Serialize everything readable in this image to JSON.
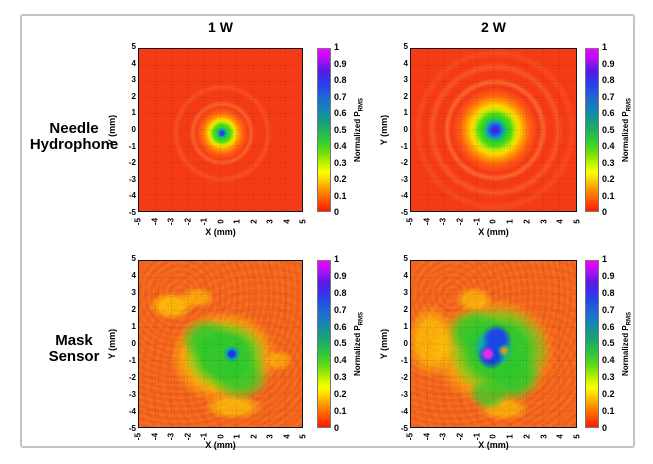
{
  "figure": {
    "columns": [
      {
        "label": "1 W"
      },
      {
        "label": "2 W"
      }
    ],
    "rows": [
      {
        "line1": "Needle",
        "line2": "Hydrophone"
      },
      {
        "line1": "Mask",
        "line2": "Sensor"
      }
    ],
    "axes": {
      "x_label": "X (mm)",
      "y_label": "Y (mm)",
      "x_ticks": [
        "-5",
        "-4",
        "-3",
        "-2",
        "-1",
        "0",
        "1",
        "2",
        "3",
        "4",
        "5"
      ],
      "y_ticks": [
        "5",
        "4",
        "3",
        "2",
        "1",
        "0",
        "-1",
        "-2",
        "-3",
        "-4",
        "-5"
      ]
    },
    "colorbar": {
      "label": "Normalized P",
      "label_sub": "RMS",
      "ticks": [
        "1",
        "0.9",
        "0.8",
        "0.7",
        "0.6",
        "0.5",
        "0.4",
        "0.3",
        "0.2",
        "0.1",
        "0"
      ],
      "colormap_stops": [
        {
          "value": 0,
          "color": "#ff1a00"
        },
        {
          "value": 0.1,
          "color": "#ff9100"
        },
        {
          "value": 0.2,
          "color": "#ffe400"
        },
        {
          "value": 0.3,
          "color": "#b8f000"
        },
        {
          "value": 0.4,
          "color": "#46d714"
        },
        {
          "value": 0.5,
          "color": "#1eb450"
        },
        {
          "value": 0.6,
          "color": "#148c8c"
        },
        {
          "value": 0.7,
          "color": "#1e78c8"
        },
        {
          "value": 0.8,
          "color": "#2846f0"
        },
        {
          "value": 0.9,
          "color": "#7d1ee6"
        },
        {
          "value": 1,
          "color": "#ff00ff"
        }
      ]
    }
  },
  "chart_data": [
    {
      "type": "heatmap",
      "panel": "top-left",
      "row_label": "Needle Hydrophone",
      "column_title": "1 W",
      "xlabel": "X (mm)",
      "ylabel": "Y (mm)",
      "xlim": [
        -5,
        5
      ],
      "ylim": [
        -5,
        5
      ],
      "x_ticks": [
        -5,
        -4,
        -3,
        -2,
        -1,
        0,
        1,
        2,
        3,
        4,
        5
      ],
      "y_ticks": [
        -5,
        -4,
        -3,
        -2,
        -1,
        0,
        1,
        2,
        3,
        4,
        5
      ],
      "grid": true,
      "colorbar_label": "Normalized PRMS",
      "colorbar_range": [
        0,
        1
      ],
      "pattern": "smooth axisymmetric focal spot on uniform red background",
      "background_value": 0.03,
      "features": [
        {
          "shape": "peak",
          "center_mm": [
            0,
            0
          ],
          "radius_mm": 0.15,
          "value": 0.85,
          "color": "blue"
        },
        {
          "shape": "disc",
          "center_mm": [
            0,
            0
          ],
          "radius_mm": 0.55,
          "value": 0.4,
          "color": "green"
        },
        {
          "shape": "ring",
          "center_mm": [
            0,
            0
          ],
          "radius_mm": 0.8,
          "value": 0.2,
          "color": "yellow"
        },
        {
          "shape": "ring",
          "center_mm": [
            0,
            0
          ],
          "radius_mm": 1.2,
          "value": 0.1,
          "color": "orange"
        },
        {
          "shape": "ring",
          "center_mm": [
            0,
            0
          ],
          "radius_mm": 1.8,
          "value": 0.06,
          "color": "faint orange side lobe"
        },
        {
          "shape": "ring",
          "center_mm": [
            0,
            0
          ],
          "radius_mm": 2.8,
          "value": 0.04,
          "color": "faint orange side lobe"
        }
      ]
    },
    {
      "type": "heatmap",
      "panel": "top-right",
      "row_label": "Needle Hydrophone",
      "column_title": "2 W",
      "xlabel": "X (mm)",
      "ylabel": "Y (mm)",
      "xlim": [
        -5,
        5
      ],
      "ylim": [
        -5,
        5
      ],
      "x_ticks": [
        -5,
        -4,
        -3,
        -2,
        -1,
        0,
        1,
        2,
        3,
        4,
        5
      ],
      "y_ticks": [
        -5,
        -4,
        -3,
        -2,
        -1,
        0,
        1,
        2,
        3,
        4,
        5
      ],
      "grid": true,
      "colorbar_label": "Normalized PRMS",
      "colorbar_range": [
        0,
        1
      ],
      "pattern": "larger axisymmetric focal spot with visible side-lobe rings",
      "background_value": 0.04,
      "features": [
        {
          "shape": "peak",
          "center_mm": [
            0,
            0
          ],
          "radius_mm": 0.3,
          "value": 0.85,
          "color": "blue"
        },
        {
          "shape": "disc",
          "center_mm": [
            0,
            0
          ],
          "radius_mm": 1.0,
          "value": 0.45,
          "color": "green"
        },
        {
          "shape": "ring",
          "center_mm": [
            0,
            0
          ],
          "radius_mm": 1.4,
          "value": 0.22,
          "color": "yellow"
        },
        {
          "shape": "ring",
          "center_mm": [
            0,
            0
          ],
          "radius_mm": 2.0,
          "value": 0.12,
          "color": "orange"
        },
        {
          "shape": "ring",
          "center_mm": [
            0,
            0
          ],
          "radius_mm": 2.9,
          "value": 0.08,
          "color": "orange side lobe"
        },
        {
          "shape": "ring",
          "center_mm": [
            0,
            0
          ],
          "radius_mm": 3.8,
          "value": 0.05,
          "color": "faint side lobe"
        }
      ]
    },
    {
      "type": "heatmap",
      "panel": "bottom-left",
      "row_label": "Mask Sensor",
      "column_title": "1 W",
      "xlabel": "X (mm)",
      "ylabel": "Y (mm)",
      "xlim": [
        -5,
        5
      ],
      "ylim": [
        -5,
        5
      ],
      "x_ticks": [
        -5,
        -4,
        -3,
        -2,
        -1,
        0,
        1,
        2,
        3,
        4,
        5
      ],
      "y_ticks": [
        -5,
        -4,
        -3,
        -2,
        -1,
        0,
        1,
        2,
        3,
        4,
        5
      ],
      "grid": true,
      "colorbar_label": "Normalized PRMS",
      "colorbar_range": [
        0,
        1
      ],
      "pattern": "noisy mottled orange background with irregular central lobe",
      "background_value": 0.08,
      "features": [
        {
          "shape": "peak",
          "center_mm": [
            0.7,
            -0.6
          ],
          "radius_mm": 0.25,
          "value": 0.8,
          "color": "blue"
        },
        {
          "shape": "blob",
          "center_mm": [
            0.3,
            -0.7
          ],
          "extent_mm": [
            [
              -1.8,
              2.2
            ],
            [
              -2.6,
              0.8
            ]
          ],
          "value": 0.38,
          "color": "green irregular"
        },
        {
          "shape": "halo",
          "center_mm": [
            0.2,
            -0.8
          ],
          "radius_mm": 3.2,
          "value": 0.2,
          "color": "yellow fringe"
        },
        {
          "shape": "patch",
          "center_mm": [
            -3.0,
            2.3
          ],
          "value": 0.2,
          "color": "yellow"
        },
        {
          "shape": "patch",
          "center_mm": [
            -1.4,
            2.8
          ],
          "value": 0.18,
          "color": "yellow"
        },
        {
          "shape": "patch",
          "center_mm": [
            0.8,
            -3.8
          ],
          "value": 0.2,
          "color": "yellow"
        },
        {
          "shape": "patch",
          "center_mm": [
            3.6,
            -1.0
          ],
          "value": 0.17,
          "color": "yellow"
        }
      ]
    },
    {
      "type": "heatmap",
      "panel": "bottom-right",
      "row_label": "Mask Sensor",
      "column_title": "2 W",
      "xlabel": "X (mm)",
      "ylabel": "Y (mm)",
      "xlim": [
        -5,
        5
      ],
      "ylim": [
        -5,
        5
      ],
      "x_ticks": [
        -5,
        -4,
        -3,
        -2,
        -1,
        0,
        1,
        2,
        3,
        4,
        5
      ],
      "y_ticks": [
        -5,
        -4,
        -3,
        -2,
        -1,
        0,
        1,
        2,
        3,
        4,
        5
      ],
      "grid": true,
      "colorbar_label": "Normalized PRMS",
      "colorbar_range": [
        0,
        1
      ],
      "pattern": "noisy orange background with large irregular lobe and strong peak",
      "background_value": 0.1,
      "features": [
        {
          "shape": "peak",
          "center_mm": [
            -0.4,
            -0.6
          ],
          "radius_mm": 0.2,
          "value": 0.97,
          "color": "magenta"
        },
        {
          "shape": "blob",
          "center_mm": [
            0.2,
            0.3
          ],
          "extent_mm": [
            [
              -0.7,
              1.2
            ],
            [
              -1.3,
              0.6
            ]
          ],
          "value": 0.78,
          "color": "blue kidney"
        },
        {
          "shape": "ring",
          "center_mm": [
            0.7,
            -0.4
          ],
          "radius_mm": 0.3,
          "value": 0.35,
          "color": "green ring with orange center"
        },
        {
          "shape": "blob",
          "center_mm": [
            0.3,
            -0.5
          ],
          "extent_mm": [
            [
              -2.4,
              3.0
            ],
            [
              -3.2,
              1.8
            ]
          ],
          "value": 0.42,
          "color": "green irregular"
        },
        {
          "shape": "halo",
          "center_mm": [
            0,
            -0.5
          ],
          "radius_mm": 3.8,
          "value": 0.2,
          "color": "yellow fringe"
        },
        {
          "shape": "band",
          "center_mm": [
            -4.2,
            0
          ],
          "extent_mm": [
            [
              -5,
              -3.4
            ],
            [
              -2,
              2
            ]
          ],
          "value": 0.2,
          "color": "yellow"
        },
        {
          "shape": "patch",
          "center_mm": [
            -1.2,
            2.7
          ],
          "value": 0.18,
          "color": "yellow"
        },
        {
          "shape": "patch",
          "center_mm": [
            0.6,
            -3.9
          ],
          "value": 0.18,
          "color": "yellow"
        }
      ]
    }
  ]
}
